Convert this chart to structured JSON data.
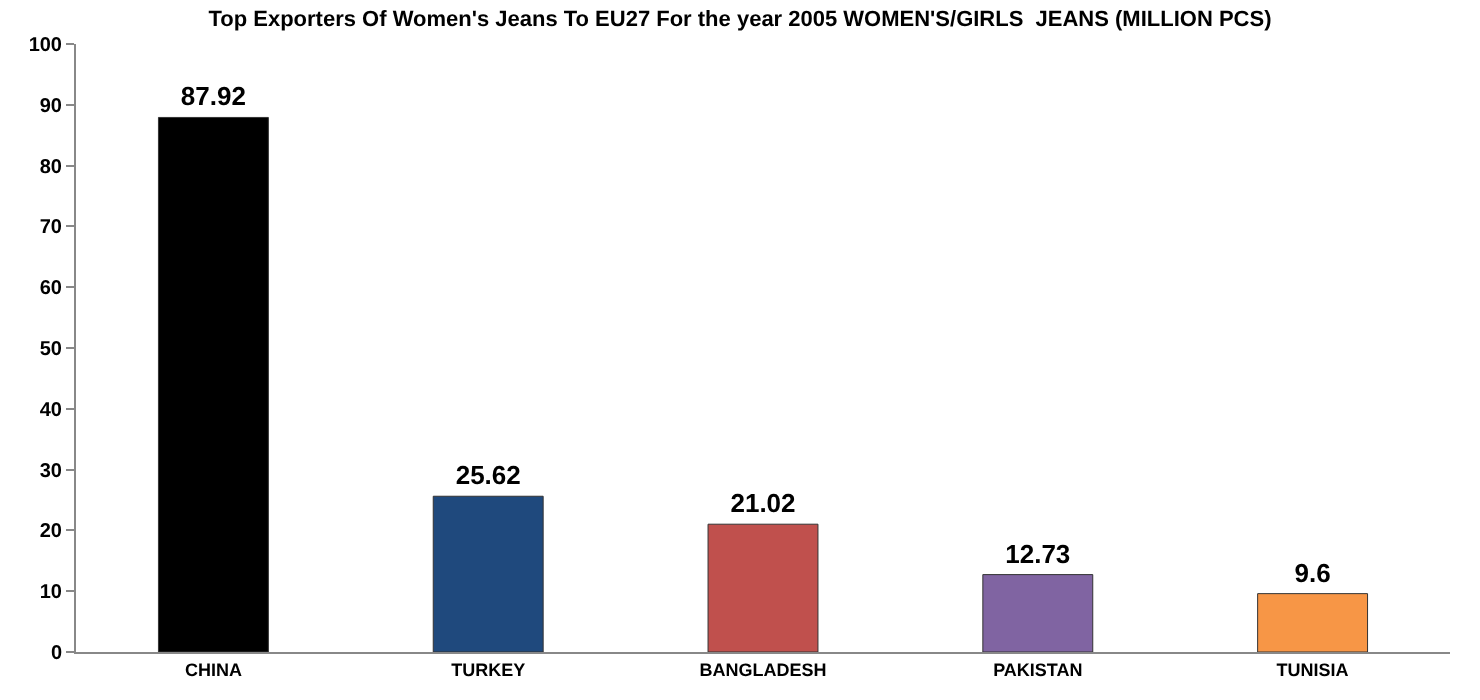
{
  "chart_data": {
    "type": "bar",
    "title": "Top Exporters Of Women's Jeans To EU27 For the year 2005 WOMEN'S/GIRLS  JEANS (MILLION PCS)",
    "categories": [
      "CHINA",
      "TURKEY",
      "BANGLADESH",
      "PAKISTAN",
      "TUNISIA"
    ],
    "values": [
      87.92,
      25.62,
      21.02,
      12.73,
      9.6
    ],
    "colors": [
      "#000000",
      "#1f497d",
      "#c0504d",
      "#8064a2",
      "#f79646"
    ],
    "ylim": [
      0,
      100
    ],
    "yticks": [
      0,
      10,
      20,
      30,
      40,
      50,
      60,
      70,
      80,
      90,
      100
    ],
    "grid": false,
    "data_labels": true,
    "legend": false
  }
}
